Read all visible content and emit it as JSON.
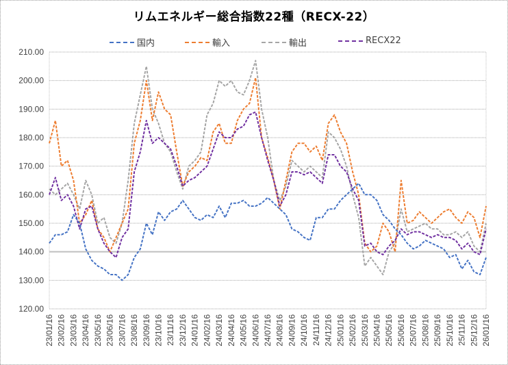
{
  "chart_data": {
    "type": "line",
    "title": "リムエネルギー総合指数22種（RECX-22）",
    "xlabel": "",
    "ylabel": "",
    "ylim": [
      120,
      210
    ],
    "yticks": [
      "120.00",
      "130.00",
      "140.00",
      "150.00",
      "160.00",
      "170.00",
      "180.00",
      "190.00",
      "200.00",
      "210.00"
    ],
    "grid": true,
    "legend_position": "top",
    "x_tick_labels": [
      "23/01/16",
      "23/02/16",
      "23/03/16",
      "23/04/16",
      "23/05/16",
      "23/06/16",
      "23/07/16",
      "23/08/16",
      "23/09/16",
      "23/10/16",
      "23/11/16",
      "23/12/16",
      "24/01/16",
      "24/02/16",
      "24/03/16",
      "24/04/16",
      "24/05/16",
      "24/06/16",
      "24/07/16",
      "24/08/16",
      "24/09/16",
      "24/10/16",
      "24/11/16",
      "24/12/16",
      "25/01/16",
      "25/02/16",
      "25/03/16",
      "25/04/16",
      "25/05/16",
      "25/06/16",
      "25/07/16",
      "25/08/16",
      "25/09/16",
      "25/10/16",
      "25/11/16",
      "25/12/16",
      "26/01/16"
    ],
    "x_sampling": "semi-monthly from 23/01/16 to 26/01/16",
    "series": [
      {
        "name": "国内",
        "color": "#4472C4",
        "style": "dashed",
        "values": [
          143,
          146,
          146,
          147,
          153,
          150,
          141,
          137,
          135,
          134,
          132,
          132,
          130,
          132,
          138,
          141,
          150,
          146,
          154,
          151,
          154,
          155,
          158,
          155,
          152,
          151,
          153,
          152,
          156,
          152,
          157,
          157,
          158,
          156,
          156,
          157,
          159,
          157,
          155,
          153,
          148,
          147,
          145,
          144,
          152,
          152,
          155,
          155,
          158,
          160,
          162,
          164,
          160,
          160,
          158,
          153,
          151,
          148,
          146,
          143,
          141,
          142,
          144,
          143,
          142,
          141,
          138,
          139,
          134,
          137,
          133,
          132,
          138
        ]
      },
      {
        "name": "輸入",
        "color": "#ED7D31",
        "style": "dashed",
        "values": [
          178,
          186,
          170,
          172,
          165,
          150,
          153,
          158,
          148,
          145,
          140,
          145,
          150,
          155,
          178,
          186,
          200,
          186,
          196,
          190,
          188,
          175,
          163,
          168,
          170,
          173,
          172,
          182,
          185,
          178,
          178,
          186,
          190,
          192,
          201,
          180,
          173,
          165,
          155,
          165,
          175,
          178,
          178,
          175,
          177,
          172,
          185,
          188,
          182,
          178,
          168,
          160,
          143,
          140,
          142,
          150,
          147,
          140,
          165,
          150,
          151,
          154,
          152,
          150,
          152,
          154,
          155,
          152,
          150,
          154,
          152,
          145,
          156
        ]
      },
      {
        "name": "輸出",
        "color": "#A5A5A5",
        "style": "dashed",
        "values": [
          162,
          160,
          162,
          164,
          160,
          155,
          165,
          160,
          150,
          152,
          145,
          143,
          150,
          165,
          185,
          195,
          205,
          190,
          185,
          178,
          175,
          168,
          162,
          170,
          172,
          175,
          188,
          192,
          200,
          198,
          200,
          196,
          195,
          200,
          207,
          190,
          180,
          165,
          158,
          163,
          172,
          170,
          168,
          170,
          168,
          166,
          182,
          180,
          176,
          170,
          160,
          152,
          135,
          138,
          135,
          132,
          140,
          143,
          155,
          147,
          148,
          149,
          150,
          148,
          148,
          146,
          146,
          147,
          145,
          147,
          142,
          140,
          150
        ]
      },
      {
        "name": "RECX22",
        "color": "#7030A0",
        "style": "dashed",
        "values": [
          160,
          166,
          158,
          160,
          156,
          148,
          155,
          156,
          148,
          143,
          140,
          138,
          145,
          148,
          168,
          175,
          186,
          178,
          180,
          178,
          176,
          170,
          163,
          165,
          166,
          168,
          170,
          176,
          182,
          180,
          180,
          183,
          184,
          188,
          189,
          180,
          172,
          165,
          156,
          160,
          168,
          168,
          167,
          168,
          166,
          164,
          174,
          174,
          170,
          168,
          162,
          158,
          142,
          143,
          140,
          139,
          142,
          144,
          148,
          146,
          147,
          147,
          146,
          145,
          146,
          145,
          145,
          144,
          141,
          143,
          140,
          139,
          148
        ]
      }
    ]
  }
}
